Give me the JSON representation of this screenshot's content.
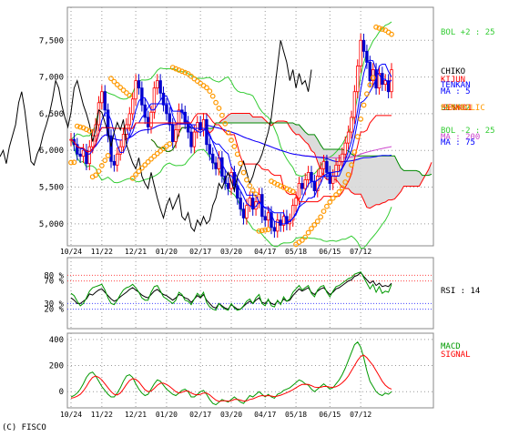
{
  "copyright": "(C) FISCO",
  "chart_data": [
    {
      "type": "line",
      "panel": "price",
      "x_labels": [
        "10/24",
        "11/22",
        "12/21",
        "01/20",
        "02/17",
        "03/20",
        "04/17",
        "05/18",
        "06/15",
        "07/12"
      ],
      "y_ticks": [
        "5,000",
        "5,500",
        "6,000",
        "6,500",
        "7,000",
        "7,500"
      ],
      "ylim": [
        4700,
        7950
      ],
      "grid": true,
      "legend_position": "right",
      "legend": {
        "bol_upper": "BOL +2 : 25",
        "chikou": "CHIKO",
        "kijun": "KIJUN",
        "tenkan": "TENKAN",
        "ma5": "MA : 5",
        "senkou": "SENKO2",
        "senkou1": "SENKO1",
        "parabolic": "PARABOLIC",
        "bol_lower": "BOL -2 : 25",
        "ma200": "MA : 200",
        "ma75": "MA : 75"
      },
      "colors": {
        "candle_up": "#ff0000",
        "candle_down": "#0000cc",
        "bollinger": "#33cc33",
        "chikou": "#000000",
        "kijun": "#ff0000",
        "tenkan": "#0000ff",
        "ma5": "#0000ff",
        "ma75": "#0000ff",
        "ma200": "#cc44cc",
        "senkou_a": "#ff0000",
        "senkou_b": "#008800",
        "parabolic": "#ff9900",
        "cloud": "#d8d8d8"
      },
      "close": [
        6150,
        6080,
        5950,
        5920,
        6000,
        5820,
        6050,
        6200,
        6350,
        6650,
        6800,
        6550,
        6200,
        5850,
        5800,
        5950,
        6050,
        6220,
        6350,
        6500,
        6700,
        6950,
        6850,
        6620,
        6450,
        6320,
        6520,
        6850,
        6950,
        6780,
        6620,
        6500,
        6350,
        6120,
        6280,
        6550,
        6520,
        6380,
        6250,
        6050,
        6250,
        6380,
        6280,
        6420,
        6080,
        5950,
        5830,
        5750,
        5900,
        5650,
        5550,
        5480,
        5700,
        5520,
        5350,
        5200,
        5080,
        5250,
        5350,
        5200,
        5300,
        5400,
        5100,
        5050,
        5150,
        4950,
        4900,
        5050,
        4980,
        5100,
        5000,
        5050,
        5250,
        5350,
        5550,
        5480,
        5600,
        5700,
        5580,
        5450,
        5650,
        5750,
        5850,
        5700,
        5550,
        5650,
        5800,
        5850,
        5950,
        6100,
        6250,
        6450,
        6800,
        7150,
        7500,
        7350,
        7200,
        6950,
        7100,
        6850,
        7050,
        6900,
        6950,
        6800,
        7100
      ]
    },
    {
      "type": "line",
      "panel": "rsi",
      "y_ticks_upper": [
        "80 %",
        "70 %"
      ],
      "y_ticks_lower": [
        "30 %",
        "20 %"
      ],
      "ylim": [
        0,
        100
      ],
      "legend": "RSI : 14",
      "series": [
        {
          "color": "#000000",
          "values": [
            40,
            36,
            30,
            30,
            34,
            38,
            47,
            45,
            50,
            54,
            56,
            50,
            44,
            38,
            34,
            37,
            42,
            46,
            50,
            55,
            58,
            54,
            50,
            45,
            42,
            40,
            46,
            52,
            55,
            50,
            46,
            44,
            40,
            36,
            40,
            46,
            44,
            40,
            38,
            32,
            38,
            44,
            40,
            46,
            36,
            30,
            24,
            22,
            30,
            26,
            22,
            20,
            28,
            24,
            20,
            20,
            25,
            30,
            34,
            30,
            36,
            40,
            32,
            30,
            36,
            30,
            28,
            34,
            30,
            38,
            34,
            36,
            44,
            50,
            56,
            52,
            55,
            58,
            50,
            46,
            52,
            56,
            58,
            52,
            46,
            50,
            56,
            58,
            62,
            66,
            70,
            72,
            78,
            80,
            85,
            78,
            72,
            66,
            70,
            62,
            66,
            60,
            62,
            60,
            66
          ]
        },
        {
          "color": "#009900",
          "values": [
            48,
            44,
            34,
            26,
            30,
            40,
            52,
            58,
            60,
            62,
            64,
            54,
            40,
            30,
            28,
            36,
            46,
            54,
            58,
            60,
            64,
            58,
            50,
            40,
            36,
            36,
            50,
            60,
            62,
            52,
            42,
            38,
            34,
            30,
            36,
            50,
            46,
            36,
            34,
            28,
            38,
            48,
            42,
            50,
            32,
            24,
            20,
            18,
            30,
            24,
            20,
            18,
            30,
            22,
            18,
            20,
            26,
            34,
            38,
            30,
            40,
            46,
            30,
            26,
            38,
            26,
            24,
            36,
            28,
            42,
            34,
            38,
            50,
            56,
            62,
            54,
            58,
            62,
            48,
            42,
            54,
            60,
            62,
            50,
            42,
            52,
            60,
            62,
            66,
            70,
            74,
            76,
            82,
            84,
            86,
            76,
            66,
            56,
            64,
            50,
            60,
            48,
            52,
            50,
            64
          ]
        }
      ]
    },
    {
      "type": "line",
      "panel": "macd",
      "y_ticks": [
        "400",
        "200",
        "0"
      ],
      "ylim": [
        -110,
        420
      ],
      "legend": [
        "MACD",
        "SIGNAL"
      ],
      "series": [
        {
          "name": "MACD",
          "color": "#009900",
          "values": [
            -40,
            -30,
            -10,
            20,
            60,
            110,
            140,
            150,
            120,
            80,
            40,
            10,
            -20,
            -40,
            -40,
            -10,
            30,
            80,
            120,
            130,
            110,
            60,
            20,
            -10,
            -30,
            -20,
            20,
            60,
            90,
            80,
            50,
            20,
            0,
            -20,
            -30,
            -10,
            10,
            20,
            0,
            -40,
            -40,
            -20,
            0,
            10,
            -20,
            -60,
            -90,
            -100,
            -80,
            -60,
            -70,
            -80,
            -60,
            -40,
            -60,
            -80,
            -90,
            -60,
            -30,
            -40,
            -20,
            0,
            -20,
            -40,
            -20,
            -40,
            -50,
            -20,
            -10,
            10,
            20,
            30,
            50,
            70,
            90,
            80,
            60,
            50,
            20,
            0,
            20,
            40,
            60,
            40,
            20,
            30,
            60,
            90,
            130,
            180,
            240,
            300,
            360,
            380,
            340,
            260,
            160,
            80,
            40,
            0,
            -20,
            -30,
            -10,
            -20,
            0
          ]
        },
        {
          "name": "SIGNAL",
          "color": "#ff0000",
          "values": [
            -50,
            -45,
            -35,
            -20,
            5,
            40,
            80,
            110,
            120,
            110,
            90,
            60,
            30,
            0,
            -20,
            -25,
            -10,
            20,
            55,
            85,
            100,
            95,
            75,
            45,
            15,
            0,
            5,
            25,
            50,
            65,
            65,
            55,
            40,
            20,
            0,
            -10,
            -5,
            5,
            5,
            -10,
            -20,
            -25,
            -20,
            -10,
            -10,
            -25,
            -45,
            -65,
            -75,
            -70,
            -70,
            -72,
            -70,
            -60,
            -60,
            -65,
            -72,
            -70,
            -60,
            -55,
            -45,
            -35,
            -30,
            -33,
            -30,
            -33,
            -38,
            -33,
            -27,
            -18,
            -8,
            3,
            15,
            30,
            45,
            55,
            57,
            55,
            46,
            35,
            32,
            34,
            40,
            40,
            35,
            33,
            38,
            50,
            68,
            90,
            120,
            160,
            200,
            240,
            270,
            280,
            260,
            230,
            200,
            160,
            120,
            80,
            50,
            30,
            20
          ]
        }
      ]
    }
  ]
}
